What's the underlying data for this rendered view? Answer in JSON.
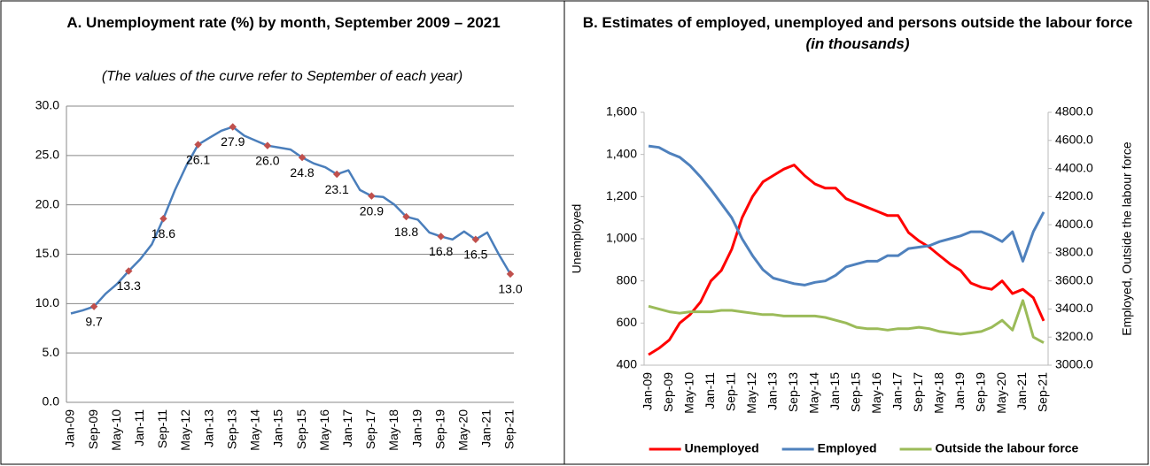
{
  "chart_data": [
    {
      "type": "line",
      "title": "A. Unemployment rate (%) by month, September  2009 – 2021",
      "subtitle": "(The values of the curve refer to September of each year)",
      "categories": [
        "Jan-09",
        null,
        "Sep-09",
        null,
        "May-10",
        null,
        "Jan-11",
        null,
        "Sep-11",
        null,
        "May-12",
        null,
        "Jan-13",
        null,
        "Sep-13",
        null,
        "May-14",
        null,
        "Jan-15",
        null,
        "Sep-15",
        null,
        "May-16",
        null,
        "Jan-17",
        null,
        "Sep-17",
        null,
        "May-18",
        null,
        "Jan-19",
        null,
        "Sep-19",
        null,
        "May-20",
        null,
        "Jan-21",
        null,
        "Sep-21"
      ],
      "series": [
        {
          "name": "Unemployment rate",
          "color": "#4a7ebb",
          "marker_color": "#c0504d",
          "values": [
            9.0,
            9.3,
            9.7,
            11.0,
            12.0,
            13.3,
            14.5,
            16.0,
            18.6,
            21.5,
            24.0,
            26.1,
            26.8,
            27.5,
            27.9,
            27.0,
            26.5,
            26.0,
            25.8,
            25.6,
            24.8,
            24.2,
            23.8,
            23.1,
            23.5,
            21.5,
            20.9,
            20.8,
            20.0,
            18.8,
            18.5,
            17.2,
            16.8,
            16.5,
            17.3,
            16.5,
            17.2,
            15.0,
            13.0
          ],
          "value_labels": [
            null,
            null,
            "9.7",
            null,
            null,
            "13.3",
            null,
            null,
            "18.6",
            null,
            null,
            "26.1",
            null,
            null,
            "27.9",
            null,
            null,
            "26.0",
            null,
            null,
            "24.8",
            null,
            null,
            "23.1",
            null,
            null,
            "20.9",
            null,
            null,
            "18.8",
            null,
            null,
            "16.8",
            null,
            null,
            "16.5",
            null,
            null,
            "13.0"
          ]
        }
      ],
      "ylim": [
        0,
        30
      ],
      "yticks": [
        {
          "value": 0,
          "label": "0.0"
        },
        {
          "value": 5,
          "label": "5.0"
        },
        {
          "value": 10,
          "label": "10.0"
        },
        {
          "value": 15,
          "label": "15.0"
        },
        {
          "value": 20,
          "label": "20.0"
        },
        {
          "value": 25,
          "label": "25.0"
        },
        {
          "value": 30,
          "label": "30.0"
        }
      ],
      "grid": true
    },
    {
      "type": "line",
      "title": "B. Estimates of employed, unemployed and persons outside the labour force",
      "title_note": "(in thousands)",
      "y_label": "Unemployed",
      "y2_label": "Employed, Outside the labour force",
      "categories": [
        "Jan-09",
        null,
        "Sep-09",
        null,
        "May-10",
        null,
        "Jan-11",
        null,
        "Sep-11",
        null,
        "May-12",
        null,
        "Jan-13",
        null,
        "Sep-13",
        null,
        "May-14",
        null,
        "Jan-15",
        null,
        "Sep-15",
        null,
        "May-16",
        null,
        "Jan-17",
        null,
        "Sep-17",
        null,
        "May-18",
        null,
        "Jan-19",
        null,
        "Sep-19",
        null,
        "May-20",
        null,
        "Jan-21",
        null,
        "Sep-21"
      ],
      "series": [
        {
          "name": "Unemployed",
          "color": "#ff0000",
          "values": [
            450,
            480,
            520,
            600,
            640,
            700,
            800,
            850,
            950,
            1100,
            1200,
            1270,
            1300,
            1330,
            1350,
            1300,
            1260,
            1240,
            1240,
            1190,
            1170,
            1150,
            1130,
            1110,
            1110,
            1030,
            990,
            960,
            920,
            880,
            850,
            790,
            770,
            760,
            800,
            740,
            760,
            720,
            610
          ]
        },
        {
          "name": "Employed",
          "color": "#4f81bd",
          "axis": "y2",
          "values": [
            4560,
            4550,
            4510,
            4480,
            4420,
            4340,
            4250,
            4150,
            4050,
            3900,
            3780,
            3680,
            3620,
            3600,
            3580,
            3570,
            3590,
            3600,
            3640,
            3700,
            3720,
            3740,
            3740,
            3780,
            3780,
            3830,
            3840,
            3850,
            3880,
            3900,
            3920,
            3950,
            3950,
            3920,
            3880,
            3950,
            3740,
            3950,
            4090
          ]
        },
        {
          "name": "Outside the labour force",
          "color": "#9bbb59",
          "axis": "y2",
          "values": [
            3420,
            3400,
            3380,
            3370,
            3380,
            3380,
            3380,
            3390,
            3390,
            3380,
            3370,
            3360,
            3360,
            3350,
            3350,
            3350,
            3350,
            3340,
            3320,
            3300,
            3270,
            3260,
            3260,
            3250,
            3260,
            3260,
            3270,
            3260,
            3240,
            3230,
            3220,
            3230,
            3240,
            3270,
            3320,
            3250,
            3460,
            3200,
            3160
          ]
        }
      ],
      "ylim": [
        400,
        1600
      ],
      "yticks": [
        400,
        600,
        800,
        {
          "value": 1000,
          "label": "1,000"
        },
        {
          "value": 1200,
          "label": "1,200"
        },
        {
          "value": 1400,
          "label": "1,400"
        },
        {
          "value": 1600,
          "label": "1,600"
        }
      ],
      "y2lim": [
        3000,
        4800
      ],
      "y2ticks": [
        {
          "value": 3000,
          "label": "3000.0"
        },
        {
          "value": 3200,
          "label": "3200.0"
        },
        {
          "value": 3400,
          "label": "3400.0"
        },
        {
          "value": 3600,
          "label": "3600.0"
        },
        {
          "value": 3800,
          "label": "3800.0"
        },
        {
          "value": 4000,
          "label": "4000.0"
        },
        {
          "value": 4200,
          "label": "4200.0"
        },
        {
          "value": 4400,
          "label": "4400.0"
        },
        {
          "value": 4600,
          "label": "4600.0"
        },
        {
          "value": 4800,
          "label": "4800.0"
        }
      ],
      "grid": false,
      "legend": "bottom"
    }
  ]
}
